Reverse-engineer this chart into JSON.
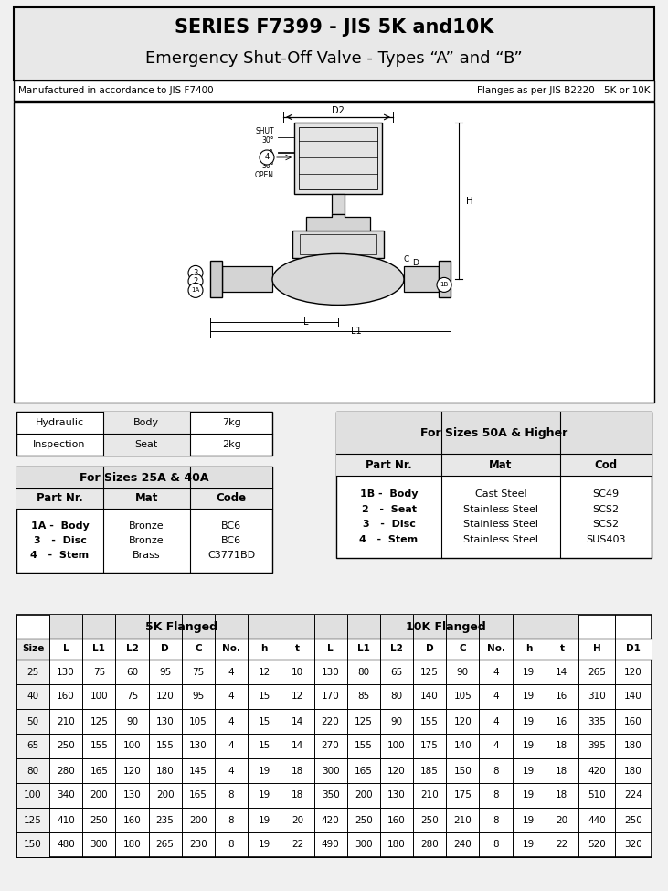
{
  "title1": "SERIES F7399 - JIS 5K and10K",
  "title2": "Emergency Shut-Off Valve - Types “A” and “B”",
  "subtitle_left": "Manufactured in accordance to JIS F7400",
  "subtitle_right": "Flanges as per JIS B2220 - 5K or 10K",
  "hydraulic_rows": [
    [
      "Hydraulic",
      "Body",
      "7kg"
    ],
    [
      "Inspection",
      "Seat",
      "2kg"
    ]
  ],
  "sizes_25_40_title": "For Sizes 25A & 40A",
  "sizes_25_40_headers": [
    "Part Nr.",
    "Mat",
    "Code"
  ],
  "sizes_25_40_col1": "1A -  Body\n3   -  Disc\n4   -  Stem",
  "sizes_25_40_col2": "Bronze\nBronze\nBrass",
  "sizes_25_40_col3": "BC6\nBC6\nC3771BD",
  "sizes_50_title": "For Sizes 50A & Higher",
  "sizes_50_headers": [
    "Part Nr.",
    "Mat",
    "Cod"
  ],
  "sizes_50_col1": "1B -  Body\n2   -  Seat\n3   -  Disc\n4   -  Stem",
  "sizes_50_col2": "Cast Steel\nStainless Steel\nStainless Steel\nStainless Steel",
  "sizes_50_col3": "SC49\nSCS2\nSCS2\nSUS403",
  "dim_table_header_5k": "5K Flanged",
  "dim_table_header_10k": "10K Flanged",
  "dim_col_headers": [
    "Size",
    "L",
    "L1",
    "L2",
    "D",
    "C",
    "No.",
    "h",
    "t",
    "L",
    "L1",
    "L2",
    "D",
    "C",
    "No.",
    "h",
    "t",
    "H",
    "D1"
  ],
  "dim_rows": [
    [
      25,
      130,
      75,
      60,
      95,
      75,
      4,
      12,
      10,
      130,
      80,
      65,
      125,
      90,
      4,
      19,
      14,
      265,
      120
    ],
    [
      40,
      160,
      100,
      75,
      120,
      95,
      4,
      15,
      12,
      170,
      85,
      80,
      140,
      105,
      4,
      19,
      16,
      310,
      140
    ],
    [
      50,
      210,
      125,
      90,
      130,
      105,
      4,
      15,
      14,
      220,
      125,
      90,
      155,
      120,
      4,
      19,
      16,
      335,
      160
    ],
    [
      65,
      250,
      155,
      100,
      155,
      130,
      4,
      15,
      14,
      270,
      155,
      100,
      175,
      140,
      4,
      19,
      18,
      395,
      180
    ],
    [
      80,
      280,
      165,
      120,
      180,
      145,
      4,
      19,
      18,
      300,
      165,
      120,
      185,
      150,
      8,
      19,
      18,
      420,
      180
    ],
    [
      100,
      340,
      200,
      130,
      200,
      165,
      8,
      19,
      18,
      350,
      200,
      130,
      210,
      175,
      8,
      19,
      18,
      510,
      224
    ],
    [
      125,
      410,
      250,
      160,
      235,
      200,
      8,
      19,
      20,
      420,
      250,
      160,
      250,
      210,
      8,
      19,
      20,
      440,
      250
    ],
    [
      150,
      480,
      300,
      180,
      265,
      230,
      8,
      19,
      22,
      490,
      300,
      180,
      280,
      240,
      8,
      19,
      22,
      520,
      320
    ]
  ],
  "page_bg": "#f0f0f0",
  "title_bg": "#e8e8e8",
  "table_header_bg": "#e0e0e0",
  "table_subhdr_bg": "#e8e8e8",
  "white": "#ffffff"
}
